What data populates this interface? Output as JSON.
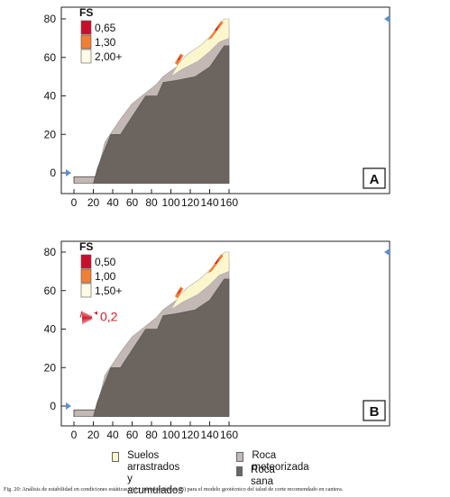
{
  "panels": [
    {
      "id": "A",
      "fs_title": "FS",
      "fs_entries": [
        {
          "label": "0,65",
          "color": "#c8102e"
        },
        {
          "label": "1,30",
          "color": "#f07f35"
        },
        {
          "label": "2,00+",
          "color": "#fffbe6"
        }
      ],
      "seismic_label": ""
    },
    {
      "id": "B",
      "fs_title": "FS",
      "fs_entries": [
        {
          "label": "0,50",
          "color": "#c8102e"
        },
        {
          "label": "1,00",
          "color": "#f07f35"
        },
        {
          "label": "1,50+",
          "color": "#fffbe6"
        }
      ],
      "seismic_label": "0,2"
    }
  ],
  "axes": {
    "x_ticks": [
      "0",
      "20",
      "40",
      "60",
      "80",
      "100",
      "120",
      "140",
      "160"
    ],
    "y_ticks": [
      "0",
      "20",
      "40",
      "60",
      "80"
    ]
  },
  "legend": {
    "items": [
      {
        "label_1": "Suelos arrastrados",
        "label_2": "y acumulados",
        "color": "#fcf6cc"
      },
      {
        "label_1": "Roca meteorizada",
        "label_2": "",
        "color": "#c3b8b4"
      },
      {
        "label_1": "Roca sana",
        "label_2": "",
        "color": "#6b645f"
      }
    ]
  },
  "caption": "Fig. 20: Análisis de estabilidad en condiciones estáticas (A) y pseudoestáticas (B) para el modelo geotécnico del talud de corte recomendado en cantera.",
  "colors": {
    "sound_rock": "#6b645f",
    "weathered_rock": "#c3b8b4",
    "soil": "#fcf6cc",
    "fs_low": "#c8102e",
    "fs_mid": "#f07f35",
    "arrow": "#5b8fd0",
    "seismic": "#d0202a"
  }
}
